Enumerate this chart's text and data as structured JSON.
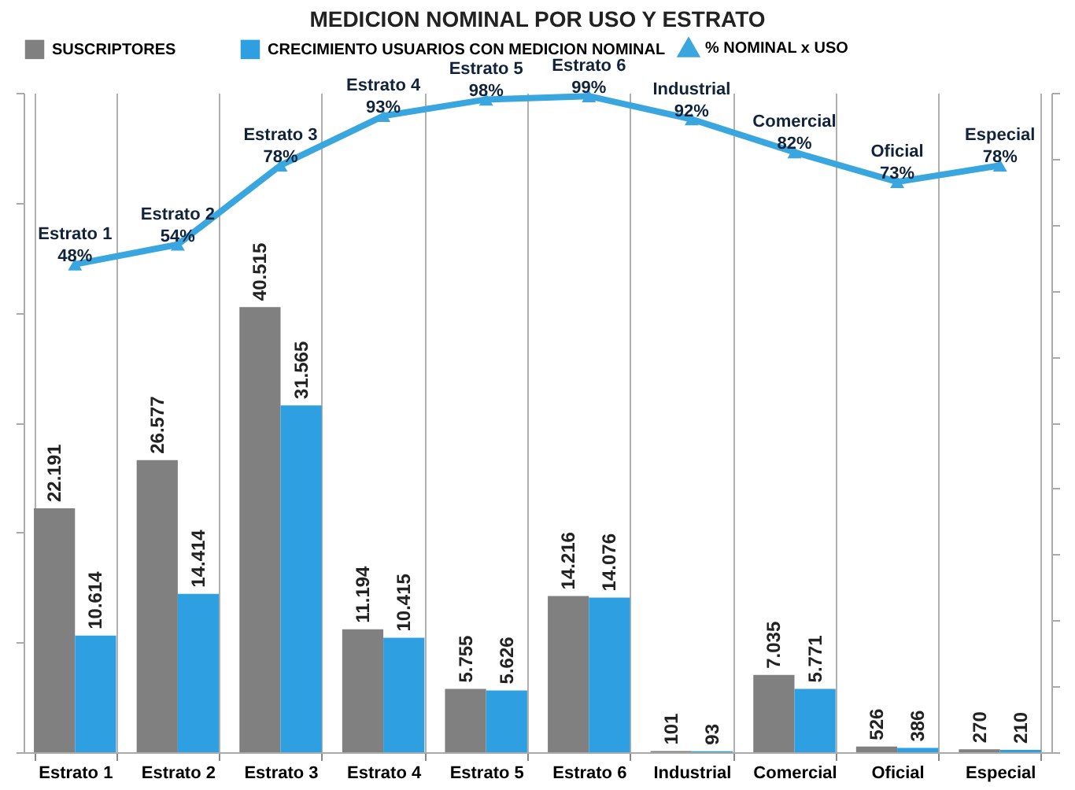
{
  "chart_data": {
    "type": "bar",
    "title": "MEDICION NOMINAL POR USO Y ESTRATO",
    "categories": [
      "Estrato 1",
      "Estrato 2",
      "Estrato 3",
      "Estrato 4",
      "Estrato 5",
      "Estrato 6",
      "Industrial",
      "Comercial",
      "Oficial",
      "Especial"
    ],
    "series": [
      {
        "name": "SUSCRIPTORES",
        "color": "#808080",
        "values": [
          22191,
          26577,
          40515,
          11194,
          5755,
          14216,
          101,
          7035,
          526,
          270
        ],
        "value_labels": [
          "22.191",
          "26.577",
          "40.515",
          "11.194",
          "5.755",
          "14.216",
          "101",
          "7.035",
          "526",
          "270"
        ]
      },
      {
        "name": "CRECIMIENTO USUARIOS CON MEDICION NOMINAL",
        "color": "#2e9fe0",
        "values": [
          10614,
          14414,
          31565,
          10415,
          5626,
          14076,
          93,
          5771,
          386,
          210
        ],
        "value_labels": [
          "10.614",
          "14.414",
          "31.565",
          "10.415",
          "5.626",
          "14.076",
          "93",
          "5.771",
          "386",
          "210"
        ]
      },
      {
        "name": "% NOMINAL x USO",
        "type": "line",
        "axis": "y2",
        "color": "#3aa6e0",
        "values": [
          48,
          54,
          78,
          93,
          98,
          99,
          92,
          82,
          73,
          78
        ],
        "value_labels": [
          "48%",
          "54%",
          "78%",
          "93%",
          "98%",
          "99%",
          "92%",
          "82%",
          "73%",
          "78%"
        ]
      }
    ],
    "ylim": [
      0,
      60000
    ],
    "yticks": [
      {
        "value": 0,
        "label": null
      },
      {
        "value": 10000,
        "label": null
      },
      {
        "value": 20000,
        "label": null
      },
      {
        "value": 30000,
        "label": null
      },
      {
        "value": 40000,
        "label": null
      },
      {
        "value": 50000,
        "label": null
      },
      {
        "value": 60000,
        "label": null
      }
    ],
    "y2lim": [
      -100,
      100
    ],
    "y2ticks": [
      {
        "value": -100,
        "label": null
      },
      {
        "value": -80,
        "label": null
      },
      {
        "value": -60,
        "label": null
      },
      {
        "value": -40,
        "label": null
      },
      {
        "value": -20,
        "label": null
      },
      {
        "value": 0,
        "label": null
      },
      {
        "value": 20,
        "label": null
      },
      {
        "value": 40,
        "label": null
      },
      {
        "value": 60,
        "label": null
      },
      {
        "value": 80,
        "label": null
      },
      {
        "value": 100,
        "label": null
      }
    ],
    "grid": "x",
    "legend": "top",
    "marker": "triangle"
  }
}
